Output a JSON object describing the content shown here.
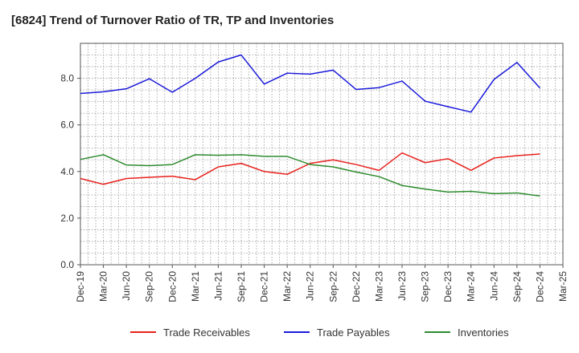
{
  "chart_data": {
    "type": "line",
    "title": "[6824]  Trend of Turnover Ratio of TR, TP and Inventories",
    "xlabel": "",
    "ylabel": "",
    "ylim": [
      0,
      9.5
    ],
    "yticks": [
      "0.0",
      "2.0",
      "4.0",
      "6.0",
      "8.0"
    ],
    "ytick_values": [
      0,
      2,
      4,
      6,
      8
    ],
    "categories": [
      "Dec-19",
      "Mar-20",
      "Jun-20",
      "Sep-20",
      "Dec-20",
      "Mar-21",
      "Jun-21",
      "Sep-21",
      "Dec-21",
      "Mar-22",
      "Jun-22",
      "Sep-22",
      "Dec-22",
      "Mar-23",
      "Jun-23",
      "Sep-23",
      "Dec-23",
      "Mar-24",
      "Jun-24",
      "Sep-24",
      "Dec-24",
      "Mar-25"
    ],
    "grid": true,
    "legend_position": "bottom",
    "series": [
      {
        "name": "Trade Receivables",
        "color": "#e8211c",
        "values": [
          3.7,
          3.45,
          3.7,
          3.75,
          3.8,
          3.65,
          4.2,
          4.35,
          4.0,
          3.88,
          4.35,
          4.5,
          4.3,
          4.05,
          4.8,
          4.38,
          4.55,
          4.05,
          4.58,
          4.68,
          4.75,
          null
        ]
      },
      {
        "name": "Trade Payables",
        "color": "#1a1adb",
        "values": [
          7.35,
          7.42,
          7.55,
          7.98,
          7.4,
          8.0,
          8.7,
          9.0,
          7.75,
          8.22,
          8.18,
          8.35,
          7.52,
          7.6,
          7.88,
          7.02,
          6.78,
          6.55,
          7.95,
          8.68,
          7.58,
          null
        ]
      },
      {
        "name": "Inventories",
        "color": "#2e8b2e",
        "values": [
          4.52,
          4.72,
          4.28,
          4.25,
          4.3,
          4.72,
          4.7,
          4.72,
          4.65,
          4.65,
          4.3,
          4.2,
          3.98,
          3.78,
          3.4,
          3.25,
          3.12,
          3.15,
          3.05,
          3.08,
          2.95,
          null
        ]
      }
    ]
  }
}
